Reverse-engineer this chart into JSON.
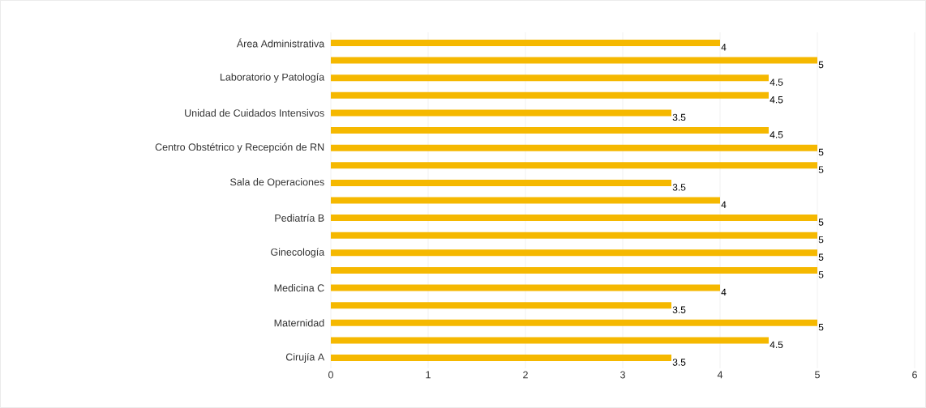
{
  "chart_data": {
    "type": "bar",
    "orientation": "horizontal",
    "categories": [
      "Área Administrativa",
      null,
      "Laboratorio y Patología",
      null,
      "Unidad de Cuidados Intensivos",
      null,
      "Centro Obstétrico y Recepción de RN",
      null,
      "Sala de Operaciones",
      null,
      "Pediatría B",
      null,
      "Ginecología",
      null,
      "Medicina C",
      null,
      "Maternidad",
      null,
      "Cirujía A"
    ],
    "values": [
      4,
      5,
      4.5,
      4.5,
      3.5,
      4.5,
      5,
      5,
      3.5,
      4,
      5,
      5,
      5,
      5,
      4,
      3.5,
      5,
      4.5,
      3.5
    ],
    "color": "#f5b800",
    "xlim": [
      0,
      6
    ],
    "xticks": [
      0,
      1,
      2,
      3,
      4,
      5,
      6
    ],
    "grid": "x",
    "data_labels": true
  }
}
